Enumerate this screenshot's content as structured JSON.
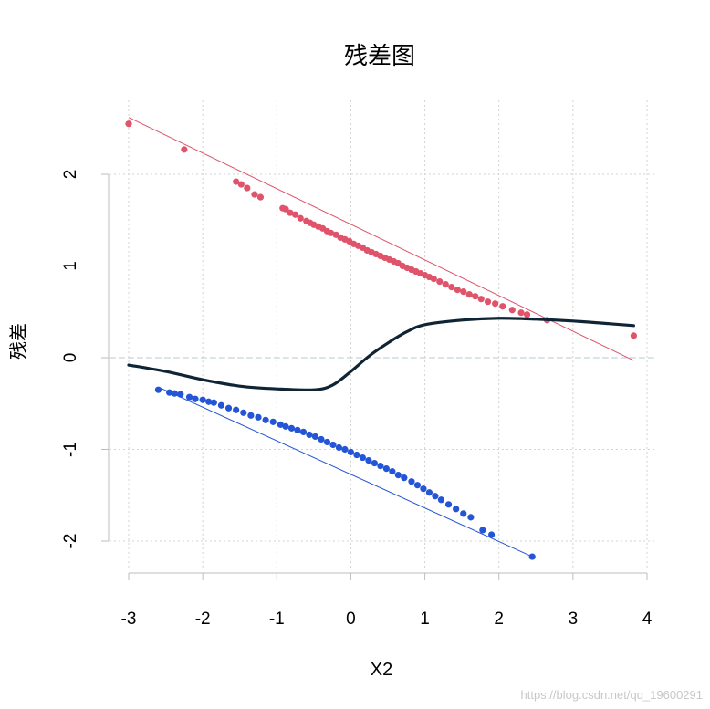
{
  "watermark": "https://blog.csdn.net/qq_19600291",
  "colors": {
    "series_top": "#df536b",
    "series_bottom": "#2455d6",
    "smooth": "#0f2535",
    "grid": "#d3d3d3",
    "zero_line": "#b7c9d1",
    "axis": "#bdbdbd"
  },
  "chart_data": {
    "type": "scatter",
    "title": "残差图",
    "xlabel": "X2",
    "ylabel": "残差",
    "xlim": [
      -3,
      4
    ],
    "ylim": [
      -2.3,
      2.6
    ],
    "x_ticks": [
      -3,
      -2,
      -1,
      0,
      1,
      2,
      3,
      4
    ],
    "y_ticks": [
      -2,
      -1,
      0,
      1,
      2
    ],
    "grid": true,
    "reference_line_y": 0,
    "series": [
      {
        "type": "scatter",
        "color": "#df536b",
        "points": [
          [
            -3.0,
            2.55
          ],
          [
            -2.25,
            2.27
          ],
          [
            -1.55,
            1.92
          ],
          [
            -1.48,
            1.89
          ],
          [
            -1.4,
            1.85
          ],
          [
            -1.3,
            1.78
          ],
          [
            -1.22,
            1.75
          ],
          [
            -0.92,
            1.63
          ],
          [
            -0.88,
            1.62
          ],
          [
            -0.82,
            1.58
          ],
          [
            -0.75,
            1.56
          ],
          [
            -0.68,
            1.52
          ],
          [
            -0.6,
            1.49
          ],
          [
            -0.55,
            1.47
          ],
          [
            -0.5,
            1.45
          ],
          [
            -0.44,
            1.43
          ],
          [
            -0.38,
            1.41
          ],
          [
            -0.32,
            1.38
          ],
          [
            -0.27,
            1.36
          ],
          [
            -0.2,
            1.34
          ],
          [
            -0.14,
            1.31
          ],
          [
            -0.08,
            1.29
          ],
          [
            -0.02,
            1.27
          ],
          [
            0.04,
            1.24
          ],
          [
            0.1,
            1.22
          ],
          [
            0.16,
            1.2
          ],
          [
            0.22,
            1.17
          ],
          [
            0.28,
            1.15
          ],
          [
            0.34,
            1.13
          ],
          [
            0.4,
            1.11
          ],
          [
            0.46,
            1.09
          ],
          [
            0.52,
            1.07
          ],
          [
            0.58,
            1.05
          ],
          [
            0.64,
            1.03
          ],
          [
            0.7,
            1.0
          ],
          [
            0.76,
            0.98
          ],
          [
            0.82,
            0.96
          ],
          [
            0.88,
            0.94
          ],
          [
            0.94,
            0.92
          ],
          [
            1.0,
            0.9
          ],
          [
            1.06,
            0.88
          ],
          [
            1.12,
            0.86
          ],
          [
            1.2,
            0.83
          ],
          [
            1.28,
            0.8
          ],
          [
            1.36,
            0.77
          ],
          [
            1.44,
            0.74
          ],
          [
            1.52,
            0.72
          ],
          [
            1.6,
            0.69
          ],
          [
            1.68,
            0.67
          ],
          [
            1.76,
            0.64
          ],
          [
            1.85,
            0.61
          ],
          [
            1.95,
            0.59
          ],
          [
            2.05,
            0.56
          ],
          [
            2.18,
            0.52
          ],
          [
            2.3,
            0.49
          ],
          [
            2.38,
            0.47
          ],
          [
            2.65,
            0.41
          ],
          [
            3.82,
            0.24
          ]
        ]
      },
      {
        "type": "line",
        "color": "#df536b",
        "points": [
          [
            -3.0,
            2.62
          ],
          [
            3.82,
            -0.03
          ]
        ]
      },
      {
        "type": "scatter",
        "color": "#2455d6",
        "points": [
          [
            -2.6,
            -0.35
          ],
          [
            -2.45,
            -0.38
          ],
          [
            -2.38,
            -0.39
          ],
          [
            -2.3,
            -0.4
          ],
          [
            -2.18,
            -0.43
          ],
          [
            -2.1,
            -0.45
          ],
          [
            -2.0,
            -0.46
          ],
          [
            -1.92,
            -0.48
          ],
          [
            -1.85,
            -0.49
          ],
          [
            -1.75,
            -0.52
          ],
          [
            -1.65,
            -0.55
          ],
          [
            -1.55,
            -0.57
          ],
          [
            -1.45,
            -0.6
          ],
          [
            -1.35,
            -0.63
          ],
          [
            -1.25,
            -0.65
          ],
          [
            -1.15,
            -0.68
          ],
          [
            -1.05,
            -0.7
          ],
          [
            -0.95,
            -0.73
          ],
          [
            -0.88,
            -0.75
          ],
          [
            -0.8,
            -0.77
          ],
          [
            -0.72,
            -0.79
          ],
          [
            -0.64,
            -0.81
          ],
          [
            -0.56,
            -0.84
          ],
          [
            -0.48,
            -0.86
          ],
          [
            -0.4,
            -0.89
          ],
          [
            -0.32,
            -0.92
          ],
          [
            -0.24,
            -0.95
          ],
          [
            -0.16,
            -0.98
          ],
          [
            -0.08,
            -1.0
          ],
          [
            0.0,
            -1.03
          ],
          [
            0.08,
            -1.06
          ],
          [
            0.16,
            -1.09
          ],
          [
            0.24,
            -1.12
          ],
          [
            0.32,
            -1.15
          ],
          [
            0.4,
            -1.18
          ],
          [
            0.48,
            -1.21
          ],
          [
            0.56,
            -1.24
          ],
          [
            0.64,
            -1.28
          ],
          [
            0.72,
            -1.31
          ],
          [
            0.82,
            -1.35
          ],
          [
            0.9,
            -1.39
          ],
          [
            0.98,
            -1.43
          ],
          [
            1.06,
            -1.47
          ],
          [
            1.14,
            -1.51
          ],
          [
            1.22,
            -1.55
          ],
          [
            1.32,
            -1.6
          ],
          [
            1.42,
            -1.65
          ],
          [
            1.52,
            -1.7
          ],
          [
            1.62,
            -1.74
          ],
          [
            1.78,
            -1.88
          ],
          [
            1.9,
            -1.93
          ],
          [
            2.45,
            -2.17
          ]
        ]
      },
      {
        "type": "line",
        "color": "#2455d6",
        "points": [
          [
            -2.6,
            -0.32
          ],
          [
            2.45,
            -2.17
          ]
        ]
      },
      {
        "type": "line",
        "color": "#0f2535",
        "smooth": true,
        "points": [
          [
            -3.0,
            -0.08
          ],
          [
            -2.5,
            -0.15
          ],
          [
            -2.0,
            -0.24
          ],
          [
            -1.5,
            -0.31
          ],
          [
            -1.0,
            -0.34
          ],
          [
            -0.5,
            -0.35
          ],
          [
            -0.25,
            -0.3
          ],
          [
            0.0,
            -0.15
          ],
          [
            0.25,
            0.02
          ],
          [
            0.5,
            0.16
          ],
          [
            0.75,
            0.28
          ],
          [
            1.0,
            0.36
          ],
          [
            1.5,
            0.41
          ],
          [
            2.0,
            0.43
          ],
          [
            2.5,
            0.42
          ],
          [
            3.0,
            0.4
          ],
          [
            3.5,
            0.37
          ],
          [
            3.82,
            0.35
          ]
        ]
      }
    ]
  }
}
